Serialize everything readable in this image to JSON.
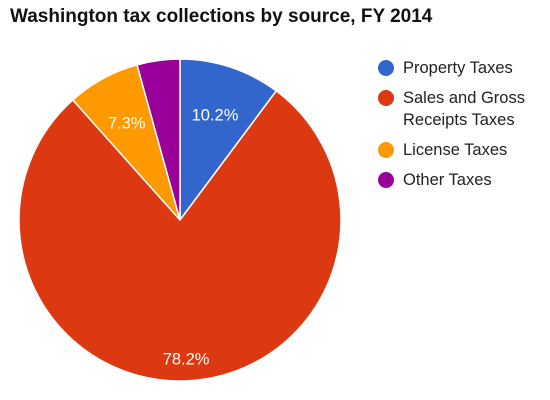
{
  "chart_data": {
    "type": "pie",
    "title": "Washington tax collections by source, FY 2014",
    "slices": [
      {
        "name": "Property Taxes",
        "value": 10.2,
        "label": "10.2%",
        "color": "#3366cc"
      },
      {
        "name": "Sales and Gross Receipts Taxes",
        "value": 78.2,
        "label": "78.2%",
        "color": "#dc3912"
      },
      {
        "name": "License Taxes",
        "value": 7.3,
        "label": "7.3%",
        "color": "#ff9900"
      },
      {
        "name": "Other Taxes",
        "value": 4.3,
        "label": "",
        "color": "#990099"
      }
    ],
    "legend_position": "right",
    "start_angle": "top",
    "direction": "clockwise"
  }
}
